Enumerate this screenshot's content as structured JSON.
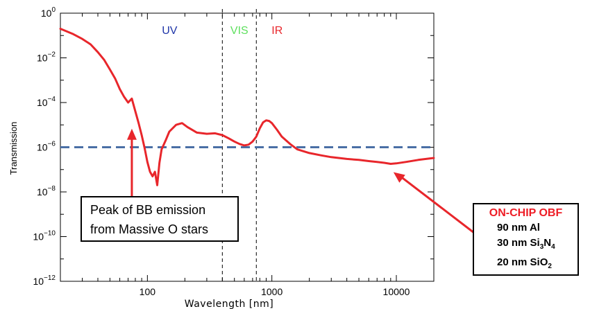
{
  "chart_data": {
    "type": "line",
    "xlabel": "Wavelength [nm]",
    "ylabel": "Transmission",
    "x_scale": "log",
    "y_scale": "log",
    "xlim": [
      20,
      20000
    ],
    "ylim": [
      1e-12,
      1
    ],
    "x_ticks": [
      {
        "value": 100,
        "label": "100"
      },
      {
        "value": 1000,
        "label": "1000"
      },
      {
        "value": 10000,
        "label": "10000"
      }
    ],
    "y_ticks": [
      {
        "value": 1,
        "base": "10",
        "exp": "0"
      },
      {
        "value": 0.01,
        "base": "10",
        "exp": "−2"
      },
      {
        "value": 0.0001,
        "base": "10",
        "exp": "−4"
      },
      {
        "value": 1e-06,
        "base": "10",
        "exp": "−6"
      },
      {
        "value": 1e-08,
        "base": "10",
        "exp": "−8"
      },
      {
        "value": 1e-10,
        "base": "10",
        "exp": "−10"
      },
      {
        "value": 1e-12,
        "base": "10",
        "exp": "−12"
      }
    ],
    "series": [
      {
        "color": "#e8262b",
        "x": [
          20,
          25,
          30,
          35,
          40,
          45,
          50,
          55,
          60,
          65,
          70,
          75,
          80,
          85,
          90,
          95,
          100,
          105,
          110,
          115,
          120,
          125,
          130,
          140,
          150,
          170,
          190,
          210,
          250,
          300,
          350,
          400,
          450,
          500,
          550,
          600,
          650,
          700,
          750,
          800,
          850,
          900,
          950,
          1000,
          1100,
          1200,
          1400,
          1600,
          2000,
          2500,
          3000,
          4000,
          5000,
          6000,
          7000,
          8000,
          9000,
          10000,
          12000,
          15000,
          20000
        ],
        "y": [
          0.2,
          0.12,
          0.07,
          0.04,
          0.018,
          0.008,
          0.003,
          0.0012,
          0.0004,
          0.00018,
          0.0001,
          0.00015,
          4e-05,
          1.2e-05,
          3.5e-06,
          9e-07,
          2.2e-07,
          8e-08,
          5e-08,
          8e-08,
          2e-08,
          2e-07,
          8e-07,
          2e-06,
          5e-06,
          1e-05,
          1.2e-05,
          8e-06,
          4.5e-06,
          4e-06,
          4.2e-06,
          3.5e-06,
          2.5e-06,
          1.8e-06,
          1.4e-06,
          1.2e-06,
          1.3e-06,
          1.8e-06,
          3e-06,
          7e-06,
          1.3e-05,
          1.6e-05,
          1.5e-05,
          1.2e-05,
          6e-06,
          3e-06,
          1.4e-06,
          8e-07,
          5.5e-07,
          4.3e-07,
          3.6e-07,
          3e-07,
          2.7e-07,
          2.4e-07,
          2.2e-07,
          2e-07,
          1.8e-07,
          1.9e-07,
          2.2e-07,
          2.7e-07,
          3.3e-07
        ]
      }
    ],
    "reference_line": {
      "y": 1e-06,
      "color": "#4a6fa5",
      "style": "dashed"
    },
    "vertical_lines": [
      {
        "x": 400,
        "style": "dashed",
        "color": "#000000"
      },
      {
        "x": 750,
        "style": "dashed",
        "color": "#000000"
      }
    ],
    "regions": [
      {
        "label": "UV",
        "color": "#1f35a8"
      },
      {
        "label": "VIS",
        "color": "#5ee05e"
      },
      {
        "label": "IR",
        "color": "#e8262b"
      }
    ],
    "annotations": [
      {
        "lines": [
          "Peak of BB emission",
          "from Massive O stars"
        ],
        "target_x": 75
      },
      {
        "title": "ON-CHIP OBF",
        "lines": [
          {
            "text": "90 nm Al"
          },
          {
            "text": "30 nm Si",
            "sub1": "3",
            "mid": "N",
            "sub2": "4"
          },
          {
            "text": "20 nm SiO",
            "sub1": "2"
          }
        ],
        "target_x": 9000
      }
    ]
  }
}
